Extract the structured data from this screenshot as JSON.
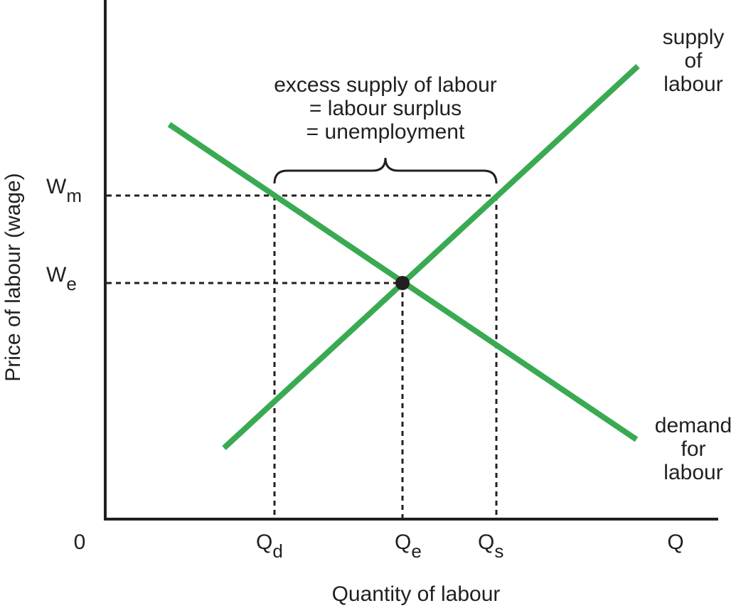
{
  "axes": {
    "y_label": "Price of labour (wage)",
    "x_label": "Quantity of labour",
    "origin": "0",
    "x_end": "Q"
  },
  "levels": [
    {
      "symbol": "W",
      "subscript": "m"
    },
    {
      "symbol": "W",
      "subscript": "e"
    }
  ],
  "quantities": [
    {
      "symbol": "Q",
      "subscript": "d"
    },
    {
      "symbol": "Q",
      "subscript": "e"
    },
    {
      "symbol": "Q",
      "subscript": "s"
    }
  ],
  "curves": [
    {
      "label_lines": [
        "supply",
        "of",
        "labour"
      ],
      "color": "#3aaa52"
    },
    {
      "label_lines": [
        "demand",
        "for",
        "labour"
      ],
      "color": "#3aaa52"
    }
  ],
  "annotation": {
    "lines": [
      "excess supply of labour",
      "= labour surplus",
      "= unemployment"
    ]
  }
}
